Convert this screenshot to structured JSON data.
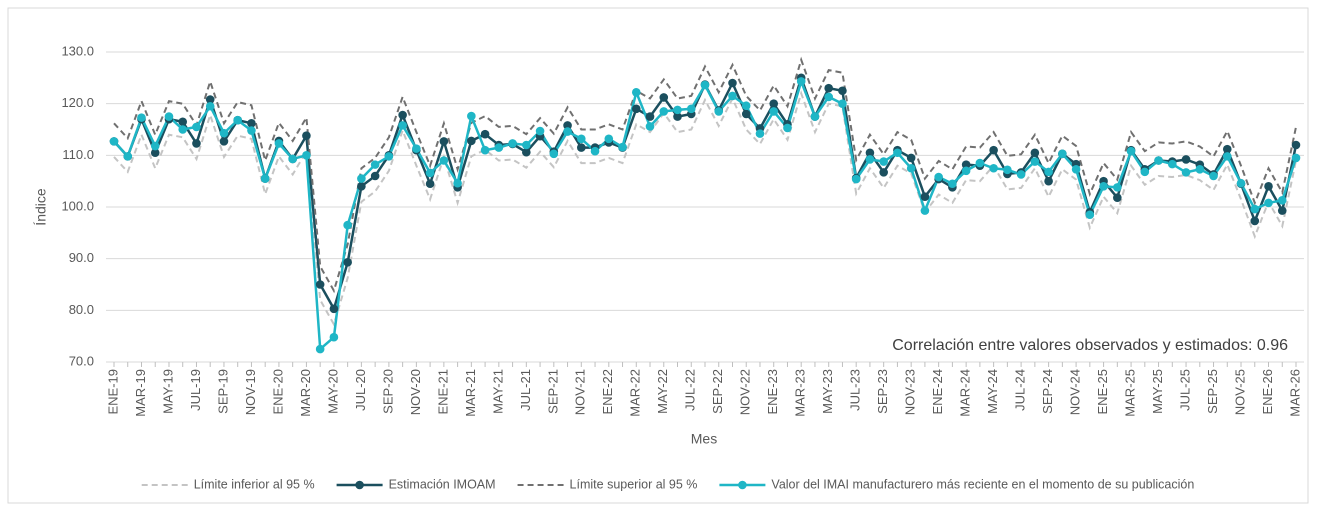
{
  "chart_data": {
    "type": "line",
    "y_label": "Índice",
    "x_label": "Mes",
    "annotation": "Correlación entre valores observados y estimados:  0.96",
    "ylim": [
      70,
      130
    ],
    "yticks": [
      {
        "value": 70,
        "label": "70.0"
      },
      {
        "value": 80,
        "label": "80.0"
      },
      {
        "value": 90,
        "label": "90.0"
      },
      {
        "value": 100,
        "label": "100.0"
      },
      {
        "value": 110,
        "label": "110.0"
      },
      {
        "value": 120,
        "label": "120.0"
      },
      {
        "value": 130,
        "label": "130.0"
      }
    ],
    "grid": true,
    "legend": "bottom",
    "categories": [
      "ENE-19",
      null,
      "MAR-19",
      null,
      "MAY-19",
      null,
      "JUL-19",
      null,
      "SEP-19",
      null,
      "NOV-19",
      null,
      "ENE-20",
      null,
      "MAR-20",
      null,
      "MAY-20",
      null,
      "JUL-20",
      null,
      "SEP-20",
      null,
      "NOV-20",
      null,
      "ENE-21",
      null,
      "MAR-21",
      null,
      "MAY-21",
      null,
      "JUL-21",
      null,
      "SEP-21",
      null,
      "NOV-21",
      null,
      "ENE-22",
      null,
      "MAR-22",
      null,
      "MAY-22",
      null,
      "JUL-22",
      null,
      "SEP-22",
      null,
      "NOV-22",
      null,
      "ENE-23",
      null,
      "MAR-23",
      null,
      "MAY-23",
      null,
      "JUL-23",
      null,
      "SEP-23",
      null,
      "NOV-23",
      null,
      "ENE-24",
      null,
      "MAR-24",
      null,
      "MAY-24",
      null,
      "JUL-24",
      null,
      "SEP-24",
      null,
      "NOV-24",
      null,
      "ENE-25",
      null,
      "MAR-25",
      null,
      "MAY-25",
      null,
      "JUL-25",
      null,
      "SEP-25",
      null,
      "NOV-25",
      null,
      "ENE-26",
      null,
      "MAR-26"
    ],
    "series": [
      {
        "name": "Límite inferior al 95 %",
        "color": "#c4c4c4",
        "style": "dashed",
        "markers": false,
        "values": [
          109.7,
          106.8,
          114,
          107.5,
          114,
          113.5,
          109.3,
          117.8,
          109.7,
          113.8,
          113.2,
          102.5,
          109.8,
          106.3,
          110.8,
          82,
          77.3,
          86.3,
          101,
          103,
          107,
          114.8,
          108,
          101.5,
          109.7,
          100.8,
          109.8,
          111.1,
          109,
          109.2,
          107.6,
          110.7,
          107.7,
          112.8,
          108.5,
          108.5,
          109.5,
          108.5,
          116,
          114.5,
          118.2,
          114.5,
          115,
          120.7,
          115.7,
          121,
          115,
          112.2,
          117,
          113,
          122,
          114.5,
          120,
          119.5,
          102.6,
          107.5,
          103.7,
          108,
          106.5,
          99,
          102.4,
          100.8,
          105.2,
          105,
          108,
          103.4,
          103.7,
          107.5,
          102,
          107.3,
          105.3,
          96,
          102,
          98.8,
          108,
          104.3,
          106,
          105.8,
          106.2,
          105.2,
          103.3,
          108.2,
          101.5,
          94.3,
          101,
          96.3,
          109
        ]
      },
      {
        "name": "Estimación IMOAM",
        "color": "#1b4f5e",
        "style": "solid",
        "markers": true,
        "values": [
          112.7,
          109.8,
          117,
          110.5,
          117,
          116.5,
          112.3,
          120.8,
          112.7,
          116.8,
          116.2,
          105.5,
          112.8,
          109.3,
          113.8,
          85,
          80.3,
          89.3,
          104,
          106,
          110,
          117.8,
          111,
          104.5,
          112.7,
          103.8,
          112.8,
          114.1,
          112,
          112.2,
          110.6,
          113.7,
          110.7,
          115.8,
          111.5,
          111.5,
          112.5,
          111.5,
          119,
          117.5,
          121.2,
          117.5,
          118,
          123.7,
          118.7,
          124,
          118,
          115.2,
          120,
          116,
          125,
          117.5,
          123,
          122.5,
          105.6,
          110.5,
          106.7,
          111,
          109.5,
          102,
          105.4,
          103.8,
          108.2,
          108,
          111,
          106.4,
          106.7,
          110.5,
          105,
          110.3,
          108.3,
          99,
          105,
          101.8,
          111,
          107.3,
          109,
          108.8,
          109.2,
          108.2,
          106.3,
          111.2,
          104.5,
          97.3,
          104,
          99.3,
          112
        ]
      },
      {
        "name": "Límite superior al 95 %",
        "color": "#707070",
        "style": "dashed",
        "markers": false,
        "values": [
          116.2,
          113.3,
          120.5,
          114,
          120.5,
          120,
          115.8,
          124.3,
          116.2,
          120.3,
          119.7,
          109,
          116.3,
          112.8,
          117.3,
          88.5,
          83.8,
          92.8,
          107.5,
          109.5,
          113.5,
          121.3,
          114.5,
          108,
          116.2,
          107.3,
          116.3,
          117.6,
          115.5,
          115.7,
          114.1,
          117.2,
          114.2,
          119.3,
          115,
          115,
          116,
          115,
          122.5,
          121,
          124.7,
          121,
          121.5,
          127.2,
          122.2,
          127.5,
          121.5,
          118.7,
          123.5,
          119.5,
          128.5,
          121,
          126.5,
          126,
          109.1,
          114,
          110.2,
          114.5,
          113,
          105.5,
          108.9,
          107.3,
          111.7,
          111.5,
          114.5,
          109.9,
          110.2,
          114,
          108.5,
          113.8,
          111.8,
          102.5,
          108.5,
          105.3,
          114.5,
          110.8,
          112.5,
          112.3,
          112.7,
          111.7,
          109.8,
          114.7,
          108,
          100.8,
          107.5,
          102.8,
          115.5
        ]
      },
      {
        "name": "Valor del IMAI manufacturero más reciente en el momento de su publicación",
        "color": "#1fb6c6",
        "style": "solid",
        "markers": true,
        "values": [
          112.7,
          109.8,
          117.3,
          111.8,
          117.5,
          115,
          115.5,
          119.5,
          114.3,
          116.8,
          114.8,
          105.5,
          112.3,
          109.3,
          110,
          72.5,
          74.8,
          96.5,
          105.5,
          108.2,
          109.8,
          115.8,
          111.3,
          106.6,
          109,
          104.6,
          117.6,
          111,
          111.5,
          112.3,
          112,
          114.7,
          110.3,
          114.6,
          113.2,
          110.8,
          113.2,
          111.6,
          122.2,
          115.6,
          118.5,
          118.8,
          119,
          123.6,
          118.5,
          121.5,
          119.6,
          114.2,
          118.5,
          115.3,
          124.3,
          117.5,
          121.3,
          120,
          105.4,
          109.2,
          108.8,
          110.5,
          107.5,
          99.3,
          105.8,
          104.5,
          107,
          108.5,
          107.5,
          107.2,
          106.3,
          108.8,
          106.8,
          110.3,
          107.3,
          98.5,
          104,
          103.8,
          110.8,
          106.8,
          109,
          108.3,
          106.7,
          107.3,
          106,
          109.8,
          104.6,
          99.6,
          100.8,
          101.3,
          109.5
        ]
      }
    ]
  }
}
